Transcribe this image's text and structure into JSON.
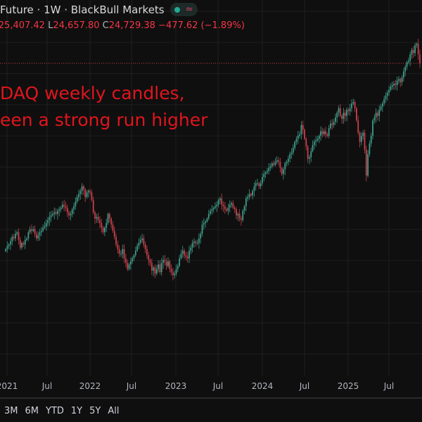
{
  "header": {
    "title": "Future · 1W · BlackBull Markets",
    "status_icon": "green-dot",
    "indicator_icon": "wave-approx-icon",
    "ohlc": {
      "high_value": "25,407.42",
      "low_label": "L",
      "low_value": "24,657.80",
      "close_label": "C",
      "close_value": "24,729.38",
      "change": "−477.62 (−1.89%)"
    }
  },
  "annotation": {
    "line1": "DAQ weekly candles,",
    "line2": "een a strong run higher"
  },
  "x_axis_labels": [
    "2021",
    "Jul",
    "2022",
    "Jul",
    "2023",
    "Jul",
    "2024",
    "Jul",
    "2025",
    "Jul"
  ],
  "range_buttons": [
    "3M",
    "6M",
    "YTD",
    "1Y",
    "5Y",
    "All"
  ],
  "colors": {
    "up": "#3f9c8a",
    "down": "#c8404c",
    "last_price_line": "#c8404c",
    "annotation": "#e0151d",
    "background": "#0f0f0f",
    "grid": "#1f1f1f"
  },
  "chart_data": {
    "type": "candlestick",
    "interval": "1W",
    "last_price": 24729.38,
    "ylim": [
      4530,
      27025
    ],
    "grid": true,
    "x_start": "2021-01",
    "weekly_closes": [
      12600,
      12800,
      12900,
      13100,
      13400,
      13300,
      13600,
      13700,
      13200,
      12700,
      13000,
      12900,
      13200,
      13300,
      13700,
      13900,
      13800,
      13900,
      13600,
      13300,
      13500,
      13700,
      13800,
      14000,
      14100,
      14300,
      14500,
      14700,
      14800,
      14900,
      15000,
      14900,
      15100,
      15200,
      15300,
      15500,
      15400,
      15300,
      15000,
      14800,
      14900,
      15200,
      15400,
      15700,
      16000,
      16200,
      16400,
      16700,
      16500,
      16000,
      16300,
      16400,
      16300,
      15800,
      15000,
      14600,
      14700,
      14500,
      14300,
      14000,
      13700,
      14000,
      14300,
      14900,
      14600,
      14200,
      13800,
      13400,
      12900,
      12600,
      12300,
      12300,
      12600,
      12000,
      11700,
      11300,
      11600,
      11800,
      12000,
      12200,
      12500,
      12800,
      13000,
      13200,
      13300,
      12900,
      12600,
      12200,
      11900,
      11700,
      11200,
      11400,
      11000,
      11300,
      11600,
      11100,
      11700,
      11900,
      11800,
      11500,
      11800,
      11300,
      11100,
      10900,
      11000,
      11300,
      11500,
      12000,
      12300,
      12500,
      12200,
      12100,
      12000,
      12500,
      12700,
      13000,
      13100,
      13000,
      13000,
      13300,
      13600,
      14200,
      14300,
      14400,
      14600,
      14900,
      15100,
      15200,
      15300,
      15400,
      15500,
      15800,
      15900,
      15500,
      15400,
      15200,
      15100,
      15300,
      15500,
      15600,
      15300,
      15200,
      14800,
      14900,
      14600,
      14500,
      15100,
      15400,
      15900,
      16000,
      16200,
      16100,
      16400,
      16700,
      16900,
      16900,
      16700,
      16900,
      17300,
      17500,
      17600,
      17700,
      17900,
      18000,
      18200,
      18100,
      18300,
      18400,
      18300,
      17900,
      17500,
      17800,
      18200,
      18300,
      18500,
      18800,
      18900,
      19200,
      19600,
      19800,
      20000,
      20100,
      20700,
      20400,
      19800,
      19300,
      18500,
      18600,
      19000,
      19400,
      19600,
      19700,
      19800,
      20000,
      20300,
      20100,
      20300,
      20100,
      20000,
      20500,
      20800,
      20700,
      20900,
      21200,
      21500,
      21800,
      21300,
      21100,
      21500,
      21300,
      21700,
      21600,
      21800,
      22100,
      22200,
      21800,
      21000,
      20200,
      19600,
      20000,
      20200,
      19100,
      17400,
      18800,
      19500,
      20000,
      21000,
      21200,
      21500,
      21300,
      21700,
      21900,
      22100,
      22400,
      22600,
      22800,
      23000,
      23200,
      23300,
      23400,
      23300,
      23600,
      23700,
      23500,
      23800,
      24200,
      24500,
      24800,
      24900,
      25300,
      25600,
      25400,
      25900,
      26000,
      25300,
      24729.38
    ]
  }
}
